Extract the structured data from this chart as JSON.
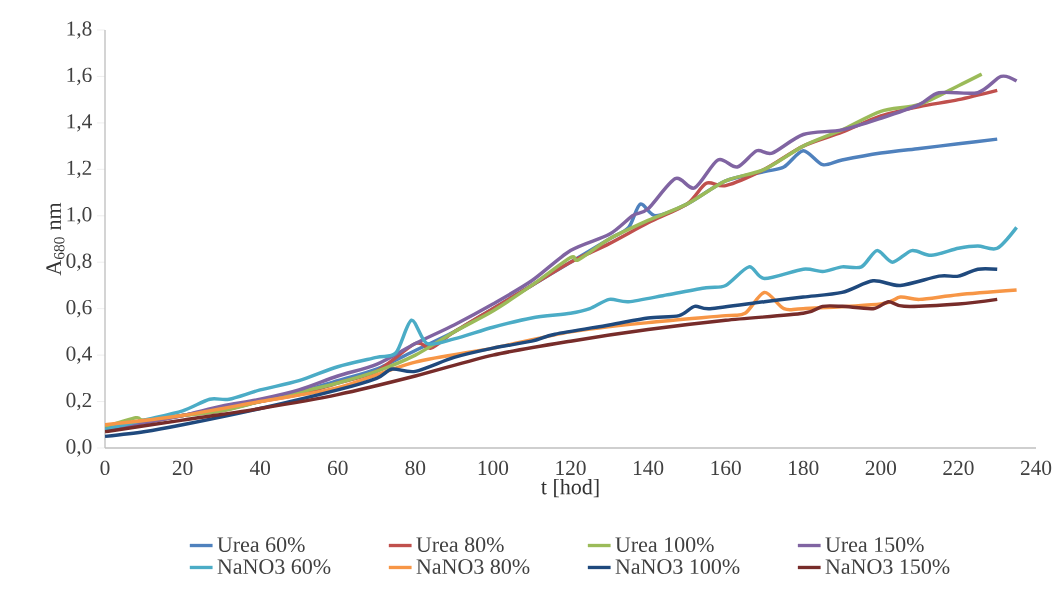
{
  "chart_data": {
    "type": "line",
    "xlabel": "t [hod]",
    "ylabel": "A$_{680}$ nm",
    "xlim": [
      0,
      240
    ],
    "ylim": [
      0,
      1.8
    ],
    "xticks": [
      0,
      20,
      40,
      60,
      80,
      100,
      120,
      140,
      160,
      180,
      200,
      220,
      240
    ],
    "yticks": [
      {
        "value": 0,
        "label": "0,0"
      },
      {
        "value": 0.2,
        "label": "0,2"
      },
      {
        "value": 0.4,
        "label": "0,4"
      },
      {
        "value": 0.6,
        "label": "0,6"
      },
      {
        "value": 0.8,
        "label": "0,8"
      },
      {
        "value": 1.0,
        "label": "1,0"
      },
      {
        "value": 1.2,
        "label": "1,2"
      },
      {
        "value": 1.4,
        "label": "1,4"
      },
      {
        "value": 1.6,
        "label": "1,6"
      },
      {
        "value": 1.8,
        "label": "1,8"
      }
    ],
    "legend": "bottom",
    "series": [
      {
        "name": "Urea 60%",
        "color": "#4f81bd",
        "x": [
          0,
          10,
          20,
          30,
          40,
          50,
          60,
          70,
          80,
          90,
          100,
          110,
          120,
          130,
          135,
          138,
          142,
          150,
          160,
          170,
          175,
          180,
          185,
          190,
          200,
          210,
          220,
          230
        ],
        "values": [
          0.08,
          0.11,
          0.14,
          0.17,
          0.2,
          0.24,
          0.29,
          0.34,
          0.42,
          0.5,
          0.6,
          0.7,
          0.8,
          0.9,
          0.95,
          1.05,
          1.0,
          1.05,
          1.15,
          1.19,
          1.21,
          1.28,
          1.22,
          1.24,
          1.27,
          1.29,
          1.31,
          1.33
        ]
      },
      {
        "name": "Urea 80%",
        "color": "#c0504d",
        "x": [
          0,
          10,
          20,
          30,
          40,
          50,
          60,
          70,
          80,
          84,
          90,
          100,
          110,
          120,
          130,
          140,
          150,
          155,
          160,
          170,
          180,
          190,
          200,
          210,
          220,
          230
        ],
        "values": [
          0.09,
          0.11,
          0.14,
          0.16,
          0.2,
          0.23,
          0.28,
          0.33,
          0.45,
          0.43,
          0.5,
          0.6,
          0.7,
          0.8,
          0.88,
          0.97,
          1.05,
          1.14,
          1.13,
          1.2,
          1.3,
          1.36,
          1.43,
          1.47,
          1.5,
          1.54
        ]
      },
      {
        "name": "Urea 100%",
        "color": "#9bbb59",
        "x": [
          0,
          8,
          10,
          20,
          30,
          40,
          50,
          60,
          70,
          80,
          90,
          100,
          110,
          120,
          122,
          130,
          140,
          150,
          160,
          170,
          180,
          190,
          200,
          210,
          220,
          226
        ],
        "values": [
          0.09,
          0.13,
          0.12,
          0.14,
          0.16,
          0.2,
          0.24,
          0.28,
          0.33,
          0.4,
          0.5,
          0.59,
          0.7,
          0.82,
          0.81,
          0.9,
          0.98,
          1.05,
          1.15,
          1.2,
          1.3,
          1.37,
          1.45,
          1.48,
          1.56,
          1.61
        ]
      },
      {
        "name": "Urea 150%",
        "color": "#8064a2",
        "x": [
          0,
          10,
          20,
          30,
          40,
          50,
          60,
          70,
          80,
          90,
          100,
          110,
          120,
          130,
          136,
          140,
          147,
          152,
          158,
          163,
          168,
          172,
          180,
          190,
          200,
          210,
          215,
          225,
          231,
          235
        ],
        "values": [
          0.08,
          0.11,
          0.14,
          0.18,
          0.21,
          0.25,
          0.31,
          0.36,
          0.45,
          0.53,
          0.62,
          0.72,
          0.85,
          0.92,
          1.0,
          1.03,
          1.16,
          1.12,
          1.24,
          1.21,
          1.28,
          1.27,
          1.35,
          1.37,
          1.42,
          1.48,
          1.53,
          1.53,
          1.6,
          1.58
        ]
      },
      {
        "name": "NaNO3 60%",
        "color": "#4bacc6",
        "x": [
          0,
          10,
          20,
          27,
          32,
          40,
          50,
          60,
          70,
          75,
          79,
          83,
          90,
          100,
          110,
          120,
          125,
          130,
          135,
          145,
          155,
          160,
          166,
          170,
          180,
          185,
          190,
          195,
          199,
          203,
          208,
          213,
          220,
          225,
          230,
          235
        ],
        "values": [
          0.08,
          0.12,
          0.16,
          0.21,
          0.21,
          0.25,
          0.29,
          0.35,
          0.39,
          0.41,
          0.55,
          0.45,
          0.47,
          0.52,
          0.56,
          0.58,
          0.6,
          0.64,
          0.63,
          0.66,
          0.69,
          0.7,
          0.78,
          0.73,
          0.77,
          0.76,
          0.78,
          0.78,
          0.85,
          0.8,
          0.85,
          0.83,
          0.86,
          0.87,
          0.86,
          0.95
        ]
      },
      {
        "name": "NaNO3 80%",
        "color": "#f79646",
        "x": [
          0,
          20,
          40,
          60,
          80,
          100,
          120,
          140,
          160,
          165,
          170,
          175,
          180,
          200,
          205,
          210,
          220,
          235
        ],
        "values": [
          0.1,
          0.14,
          0.2,
          0.26,
          0.37,
          0.43,
          0.5,
          0.54,
          0.57,
          0.58,
          0.67,
          0.6,
          0.6,
          0.62,
          0.65,
          0.64,
          0.66,
          0.68
        ]
      },
      {
        "name": "NaNO3 100%",
        "color": "#1f497d",
        "x": [
          0,
          10,
          20,
          40,
          60,
          70,
          74,
          80,
          90,
          100,
          110,
          116,
          130,
          140,
          148,
          152,
          156,
          170,
          180,
          190,
          198,
          205,
          215,
          220,
          225,
          230
        ],
        "values": [
          0.05,
          0.07,
          0.1,
          0.17,
          0.25,
          0.3,
          0.34,
          0.33,
          0.39,
          0.43,
          0.46,
          0.49,
          0.53,
          0.56,
          0.57,
          0.61,
          0.6,
          0.63,
          0.65,
          0.67,
          0.72,
          0.7,
          0.74,
          0.74,
          0.77,
          0.77
        ]
      },
      {
        "name": "NaNO3 150%",
        "color": "#772c2a",
        "x": [
          0,
          20,
          40,
          60,
          80,
          100,
          120,
          140,
          160,
          180,
          185,
          190,
          198,
          202,
          206,
          220,
          230
        ],
        "values": [
          0.07,
          0.12,
          0.17,
          0.23,
          0.31,
          0.4,
          0.46,
          0.51,
          0.55,
          0.58,
          0.61,
          0.61,
          0.6,
          0.63,
          0.61,
          0.62,
          0.64
        ]
      }
    ]
  }
}
